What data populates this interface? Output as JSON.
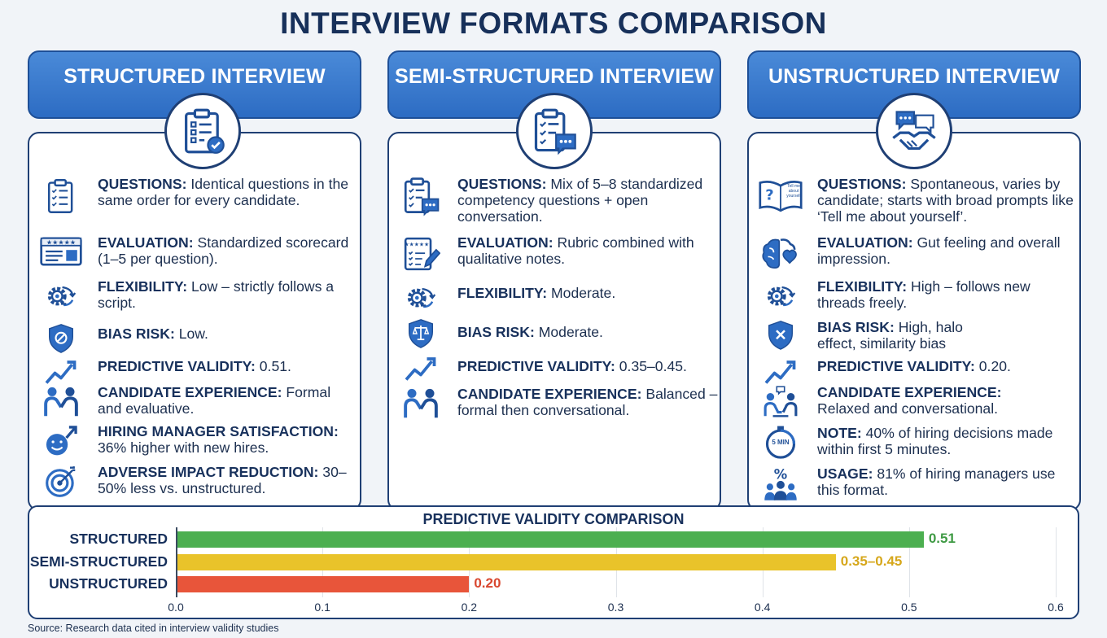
{
  "title": "INTERVIEW FORMATS COMPARISON",
  "columns": [
    {
      "header": "STRUCTURED INTERVIEW",
      "badge_icon": "clipboard-check-icon",
      "items": [
        {
          "icon": "checklist-icon",
          "label": "QUESTIONS:",
          "text": "Identical questions in the same order for every candidate."
        },
        {
          "icon": "scorecard-icon",
          "label": "EVALUATION:",
          "text": "Standardized scorecard (1–5 per question)."
        },
        {
          "icon": "gear-arrows-icon",
          "label": "FLEXIBILITY:",
          "text": "Low – strictly follows a script."
        },
        {
          "icon": "shield-ban-icon",
          "label": "BIAS RISK:",
          "text": "Low."
        },
        {
          "icon": "trend-up-icon",
          "label": "PREDICTIVE VALIDITY:",
          "text": "0.51."
        },
        {
          "icon": "people-handshake-icon",
          "label": "CANDIDATE EXPERIENCE:",
          "text": "Formal and evaluative."
        },
        {
          "icon": "smiley-arrow-icon",
          "label": "HIRING MANAGER SATISFACTION:",
          "text": "36% higher with new hires."
        },
        {
          "icon": "target-icon",
          "label": "ADVERSE IMPACT REDUCTION:",
          "text": "30–50% less vs. unstructured."
        }
      ]
    },
    {
      "header": "SEMI-STRUCTURED INTERVIEW",
      "badge_icon": "clipboard-chat-icon",
      "items": [
        {
          "icon": "clipboard-chat-icon",
          "label": "QUESTIONS:",
          "text": "Mix of 5–8 standardized competency questions + open conversation."
        },
        {
          "icon": "rubric-pen-icon",
          "label": "EVALUATION:",
          "text": "Rubric combined with qualitative notes."
        },
        {
          "icon": "gear-arrows-icon",
          "label": "FLEXIBILITY:",
          "text": "Moderate."
        },
        {
          "icon": "shield-scale-icon",
          "label": "BIAS RISK:",
          "text": "Moderate."
        },
        {
          "icon": "trend-up-icon",
          "label": "PREDICTIVE VALIDITY:",
          "text": "0.35–0.45."
        },
        {
          "icon": "people-handshake-icon",
          "label": "CANDIDATE EXPERIENCE:",
          "text": "Balanced – formal then conversational."
        }
      ]
    },
    {
      "header": "UNSTRUCTURED INTERVIEW",
      "badge_icon": "chat-handshake-icon",
      "items": [
        {
          "icon": "open-book-question-icon",
          "label": "QUESTIONS:",
          "text": "Spontaneous, varies by candidate; starts with broad prompts like ‘Tell me about yourself’.",
          "icon_text": "Tell me about yourself"
        },
        {
          "icon": "brain-heart-icon",
          "label": "EVALUATION:",
          "text": "Gut feeling and overall impression."
        },
        {
          "icon": "gear-arrows-icon",
          "label": "FLEXIBILITY:",
          "text": "High – follows new threads freely."
        },
        {
          "icon": "shield-x-icon",
          "label": "BIAS RISK:",
          "text": "High, halo effect, similarity bias"
        },
        {
          "icon": "trend-up-icon",
          "label": "PREDICTIVE VALIDITY:",
          "text": "0.20."
        },
        {
          "icon": "people-chatting-icon",
          "label": "CANDIDATE EXPERIENCE:",
          "text": "Relaxed and conversational."
        },
        {
          "icon": "timer-icon",
          "label": "NOTE:",
          "text": "40% of hiring decisions made within first 5 minutes.",
          "icon_text": "5 MIN"
        },
        {
          "icon": "percent-people-icon",
          "label": "USAGE:",
          "text": "81% of hiring managers use this format."
        }
      ]
    }
  ],
  "chart_data": {
    "type": "bar",
    "orientation": "horizontal",
    "title": "PREDICTIVE VALIDITY COMPARISON",
    "categories": [
      "STRUCTURED",
      "SEMI-STRUCTURED",
      "UNSTRUCTURED"
    ],
    "values": [
      0.51,
      0.45,
      0.2
    ],
    "value_labels": [
      "0.51",
      "0.35–0.45",
      "0.20"
    ],
    "colors": [
      "#4caf50",
      "#e9c32a",
      "#e8553a"
    ],
    "label_colors": [
      "#3f9a44",
      "#d6a71b",
      "#d9472f"
    ],
    "xlim": [
      0,
      0.6
    ],
    "xticks": [
      "0.0",
      "0.1",
      "0.2",
      "0.3",
      "0.4",
      "0.5",
      "0.6"
    ],
    "grid": true
  },
  "source": "Source: Research data cited in interview validity studies"
}
